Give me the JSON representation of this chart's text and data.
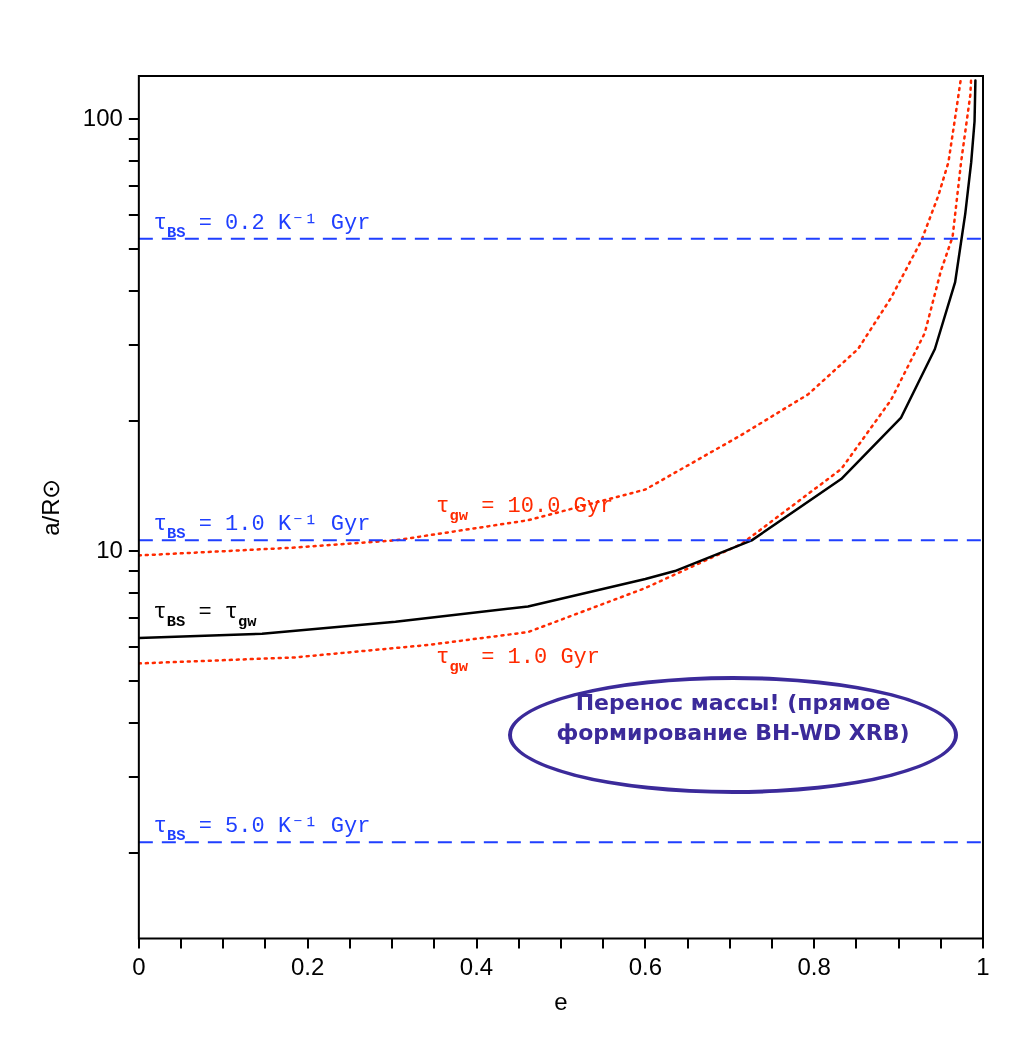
{
  "chart_data": {
    "type": "line",
    "xlabel": "e",
    "ylabel": "a/R⊙",
    "log": "y",
    "xlim": [
      0,
      1
    ],
    "xticks": [
      0,
      {
        "value": 0.05,
        "label": null
      },
      {
        "value": 0.1,
        "label": null
      },
      {
        "value": 0.15,
        "label": null
      },
      0.2,
      {
        "value": 0.25,
        "label": null
      },
      {
        "value": 0.3,
        "label": null
      },
      {
        "value": 0.35,
        "label": null
      },
      0.4,
      {
        "value": 0.45,
        "label": null
      },
      {
        "value": 0.5,
        "label": null
      },
      {
        "value": 0.55,
        "label": null
      },
      0.6,
      {
        "value": 0.65,
        "label": null
      },
      {
        "value": 0.7,
        "label": null
      },
      {
        "value": 0.75,
        "label": null
      },
      0.8,
      {
        "value": 0.85,
        "label": null
      },
      {
        "value": 0.9,
        "label": null
      },
      {
        "value": 0.95,
        "label": null
      },
      1
    ],
    "ylim": [
      1.27,
      126
    ],
    "yticks": [
      {
        "value": 2,
        "label": null
      },
      {
        "value": 3,
        "label": null
      },
      {
        "value": 4,
        "label": null
      },
      {
        "value": 5,
        "label": null
      },
      {
        "value": 6,
        "label": null
      },
      {
        "value": 7,
        "label": null
      },
      {
        "value": 8,
        "label": null
      },
      {
        "value": 9,
        "label": null
      },
      10,
      {
        "value": 20,
        "label": null
      },
      {
        "value": 30,
        "label": null
      },
      {
        "value": 40,
        "label": null
      },
      {
        "value": 50,
        "label": null
      },
      {
        "value": 60,
        "label": null
      },
      {
        "value": 70,
        "label": null
      },
      {
        "value": 80,
        "label": null
      },
      {
        "value": 90,
        "label": null
      },
      100
    ],
    "legend": false,
    "series": [
      {
        "name": "τ$_{BS}$ = τ$_{gw}$",
        "color": "#000000",
        "line_style": "solid",
        "x": [
          0,
          0.146,
          0.304,
          0.461,
          0.6,
          0.635,
          0.726,
          0.832,
          0.903,
          0.943,
          0.967,
          0.979,
          0.986,
          0.99,
          0.991
        ],
        "values": [
          6.3,
          6.44,
          6.87,
          7.45,
          8.63,
          9.0,
          10.6,
          14.7,
          20.4,
          29.4,
          42,
          60.5,
          79.5,
          99,
          123
        ]
      },
      {
        "name": "τ$_{gw}$ = 10.0 Gyr",
        "color": "#ff2a00",
        "line_style": "dotted",
        "x": [
          0,
          0.185,
          0.304,
          0.461,
          0.6,
          0.714,
          0.793,
          0.852,
          0.891,
          0.927,
          0.947,
          0.959,
          0.968,
          0.974
        ],
        "values": [
          9.78,
          10.2,
          10.6,
          11.8,
          13.9,
          18.6,
          23.1,
          29.4,
          38.6,
          52.4,
          66.5,
          79.5,
          104,
          125
        ]
      },
      {
        "name": "τ$_{gw}$ = 1.0 Gyr",
        "color": "#ff2a00",
        "line_style": "dotted",
        "x": [
          0,
          0.185,
          0.343,
          0.461,
          0.6,
          0.714,
          0.832,
          0.891,
          0.931,
          0.95,
          0.964,
          0.974,
          0.985,
          0.986
        ],
        "values": [
          5.5,
          5.68,
          6.07,
          6.5,
          8.22,
          10.4,
          15.5,
          22.4,
          32,
          44.5,
          53.5,
          79.5,
          114,
          125
        ]
      }
    ],
    "ref_lines": [
      {
        "axis": "y",
        "value": 52.9,
        "color": "#1f3fff",
        "line_style": "dashed"
      },
      {
        "axis": "y",
        "value": 10.6,
        "color": "#1f3fff",
        "line_style": "dashed"
      },
      {
        "axis": "y",
        "value": 2.12,
        "color": "#1f3fff",
        "line_style": "dashed"
      }
    ],
    "annotations": [
      "τ$_{BS}$ = 0.2 K⁻¹ Gyr",
      "τ$_{BS}$ = 1.0 K⁻¹ Gyr",
      "τ$_{BS}$ = 5.0 K⁻¹ Gyr",
      "Перенос массы! (прямое формирование BH-WD XRB)"
    ]
  }
}
